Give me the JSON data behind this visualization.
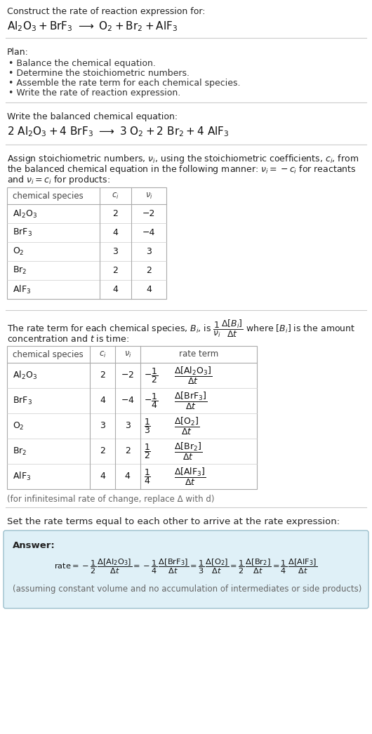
{
  "title_line1": "Construct the rate of reaction expression for:",
  "plan_header": "Plan:",
  "plan_items": [
    "• Balance the chemical equation.",
    "• Determine the stoichiometric numbers.",
    "• Assemble the rate term for each chemical species.",
    "• Write the rate of reaction expression."
  ],
  "balanced_header": "Write the balanced chemical equation:",
  "stoich_text_lines": [
    "Assign stoichiometric numbers, $\\nu_i$, using the stoichiometric coefficients, $c_i$, from",
    "the balanced chemical equation in the following manner: $\\nu_i = -c_i$ for reactants",
    "and $\\nu_i = c_i$ for products:"
  ],
  "table1_rows": [
    [
      "Al$_2$O$_3$",
      "2",
      "−2"
    ],
    [
      "BrF$_3$",
      "4",
      "−4"
    ],
    [
      "O$_2$",
      "3",
      "3"
    ],
    [
      "Br$_2$",
      "2",
      "2"
    ],
    [
      "AlF$_3$",
      "4",
      "4"
    ]
  ],
  "infinitesimal_note": "(for infinitesimal rate of change, replace Δ with d)",
  "set_equal_text": "Set the rate terms equal to each other to arrive at the rate expression:",
  "answer_box_color": "#dff0f7",
  "answer_border_color": "#9bbfcc",
  "answer_label": "Answer:",
  "assuming_note": "(assuming constant volume and no accumulation of intermediates or side products)",
  "bg_color": "#ffffff",
  "sep_line_color": "#cccccc",
  "table_border_color": "#aaaaaa",
  "table_sep_color": "#cccccc"
}
